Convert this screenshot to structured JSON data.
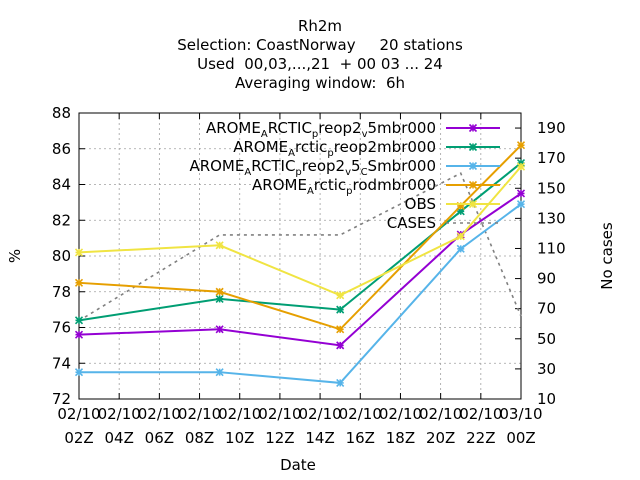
{
  "chart_data": {
    "type": "line",
    "title_lines": [
      "Rh2m",
      "Selection: CoastNorway     20 stations",
      "Used  00,03,...,21  + 00 03 ... 24",
      "Averaging window:  6h"
    ],
    "xlabel": "Date",
    "ylabel": "%",
    "y2label": "No cases",
    "x_hours": [
      0,
      2,
      4,
      6,
      8,
      10,
      12,
      14,
      16,
      18,
      20,
      22
    ],
    "xtick_labels": [
      [
        "02/10",
        "02Z"
      ],
      [
        "02/10",
        "04Z"
      ],
      [
        "02/10",
        "06Z"
      ],
      [
        "02/10",
        "08Z"
      ],
      [
        "02/10",
        "10Z"
      ],
      [
        "02/10",
        "12Z"
      ],
      [
        "02/10",
        "14Z"
      ],
      [
        "02/10",
        "16Z"
      ],
      [
        "02/10",
        "18Z"
      ],
      [
        "02/10",
        "20Z"
      ],
      [
        "02/10",
        "22Z"
      ],
      [
        "03/10",
        "00Z"
      ]
    ],
    "ylim": [
      72,
      88
    ],
    "yticks": [
      72,
      74,
      76,
      78,
      80,
      82,
      84,
      86,
      88
    ],
    "y2lim": [
      10,
      200
    ],
    "y2ticks": [
      10,
      30,
      50,
      70,
      90,
      110,
      130,
      150,
      170,
      190
    ],
    "grid": true,
    "legend_placement": "top-right",
    "series": [
      {
        "name_parts": [
          [
            "AROME",
            ""
          ],
          [
            "A",
            "sub"
          ],
          [
            "RCTIC",
            ""
          ],
          [
            "p",
            "sub"
          ],
          [
            "reop2",
            ""
          ],
          [
            "v",
            "sub"
          ],
          [
            "5mbr000",
            ""
          ]
        ],
        "color": "#9400d3",
        "marker": "plus",
        "points": [
          [
            0,
            75.6
          ],
          [
            7,
            75.9
          ],
          [
            13,
            75.0
          ],
          [
            19,
            81.2
          ],
          [
            22,
            83.5
          ]
        ]
      },
      {
        "name_parts": [
          [
            "AROME",
            ""
          ],
          [
            "A",
            "sub"
          ],
          [
            "rctic",
            ""
          ],
          [
            "p",
            "sub"
          ],
          [
            "reop2mbr000",
            ""
          ]
        ],
        "color": "#009e73",
        "marker": "plus",
        "points": [
          [
            0,
            76.4
          ],
          [
            7,
            77.6
          ],
          [
            13,
            77.0
          ],
          [
            19,
            82.5
          ],
          [
            22,
            85.2
          ]
        ]
      },
      {
        "name_parts": [
          [
            "AROME",
            ""
          ],
          [
            "A",
            "sub"
          ],
          [
            "RCTIC",
            ""
          ],
          [
            "p",
            "sub"
          ],
          [
            "reop2",
            ""
          ],
          [
            "v",
            "sub"
          ],
          [
            "5",
            ""
          ],
          [
            "C",
            "sub"
          ],
          [
            "Smbr000",
            ""
          ]
        ],
        "color": "#56b4e9",
        "marker": "plus",
        "points": [
          [
            0,
            73.5
          ],
          [
            7,
            73.5
          ],
          [
            13,
            72.9
          ],
          [
            19,
            80.4
          ],
          [
            22,
            82.9
          ]
        ]
      },
      {
        "name_parts": [
          [
            "AROME",
            ""
          ],
          [
            "A",
            "sub"
          ],
          [
            "rctic",
            ""
          ],
          [
            "p",
            "sub"
          ],
          [
            "rodmbr000",
            ""
          ]
        ],
        "color": "#e69f00",
        "marker": "plus",
        "points": [
          [
            0,
            78.5
          ],
          [
            7,
            78.0
          ],
          [
            13,
            75.9
          ],
          [
            19,
            82.8
          ],
          [
            22,
            86.2
          ]
        ]
      },
      {
        "name_parts": [
          [
            "OBS",
            ""
          ]
        ],
        "color": "#f0e442",
        "marker": "plus",
        "points": [
          [
            0,
            80.2
          ],
          [
            7,
            80.6
          ],
          [
            13,
            77.8
          ],
          [
            19,
            81.1
          ],
          [
            22,
            85.0
          ]
        ]
      }
    ],
    "cases": {
      "name": "CASES",
      "color": "#808080",
      "dash": "dotted",
      "points": [
        [
          0,
          62
        ],
        [
          7,
          119
        ],
        [
          13,
          119
        ],
        [
          19,
          160
        ],
        [
          22,
          65
        ]
      ]
    }
  }
}
